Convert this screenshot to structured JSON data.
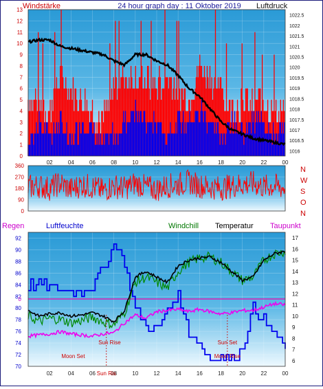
{
  "header": {
    "left_label": "Windstärke",
    "title": "24 hour graph day : 11 Oktober 2019",
    "right_label": "Luftdruck"
  },
  "colors": {
    "background": "#ffffff",
    "plot_bg_top": "#2a9ad6",
    "plot_bg_bottom": "#e6f6ff",
    "axis_red": "#cc0000",
    "wind_red": "#ff0000",
    "wind_blue": "#0000ee",
    "pressure": "#000000",
    "humidity": "#0000ee",
    "windchill": "#008800",
    "temperature": "#000000",
    "dewpoint": "#ee00ee",
    "rain_line": "#ee00aa",
    "frame": "#1a1a7a"
  },
  "chart_data": [
    {
      "type": "line",
      "name_hint": "wind and pressure",
      "x_ticks": [
        "02",
        "04",
        "06",
        "08",
        "10",
        "12",
        "14",
        "16",
        "18",
        "20",
        "22",
        "00"
      ],
      "x_range_hours": [
        0,
        24
      ],
      "y_left": {
        "ticks": [
          "0",
          "1",
          "2",
          "3",
          "4",
          "5",
          "6",
          "7",
          "8",
          "9",
          "10",
          "11",
          "12",
          "13"
        ],
        "range": [
          0,
          13
        ]
      },
      "y_right": {
        "ticks": [
          "1016",
          "1016.5",
          "1017",
          "1017.5",
          "1018",
          "1018.5",
          "1019",
          "1019.5",
          "1020",
          "1020.5",
          "1021",
          "1021.5",
          "1022",
          "1022.5"
        ],
        "range": [
          1015.75,
          1022.75
        ]
      },
      "pressure_series": {
        "x": [
          0,
          1,
          2,
          3,
          4,
          5,
          6,
          7,
          8,
          9,
          10,
          11,
          12,
          13,
          14,
          15,
          16,
          17,
          18,
          19,
          20,
          21,
          22,
          23,
          24
        ],
        "y": [
          1021.2,
          1021.3,
          1021.3,
          1021.0,
          1020.9,
          1020.8,
          1020.7,
          1020.6,
          1020.3,
          1020.1,
          1020.6,
          1020.6,
          1020.3,
          1020.1,
          1019.6,
          1019.0,
          1018.6,
          1018.0,
          1017.4,
          1017.0,
          1016.8,
          1016.6,
          1016.5,
          1016.4,
          1016.3
        ]
      },
      "wind_series": {
        "x": [
          0,
          1,
          2,
          3,
          4,
          5,
          6,
          7,
          8,
          9,
          10,
          11,
          12,
          13,
          14,
          15,
          16,
          17,
          18,
          19,
          20,
          21,
          22,
          23,
          24
        ],
        "gust": [
          5,
          5,
          4,
          7,
          6,
          5,
          4,
          3,
          6,
          7,
          7,
          7,
          6,
          7,
          6,
          5,
          8,
          7,
          6,
          4,
          5,
          5,
          5,
          4,
          4
        ],
        "mean": [
          1,
          3,
          2,
          3,
          1,
          3,
          2,
          1,
          2,
          3,
          4,
          3,
          3,
          2,
          3,
          3,
          4,
          3,
          2,
          3,
          2,
          3,
          3,
          2,
          2
        ]
      }
    },
    {
      "type": "scatter",
      "name_hint": "wind direction",
      "y_ticks": [
        "0",
        "90",
        "180",
        "270",
        "360"
      ],
      "y_range": [
        0,
        360
      ],
      "compass": [
        "N",
        "W",
        "S",
        "O",
        "N"
      ],
      "x": [
        0,
        1,
        2,
        3,
        4,
        5,
        6,
        7,
        8,
        9,
        10,
        11,
        12,
        13,
        14,
        15,
        16,
        17,
        18,
        19,
        20,
        21,
        22,
        23,
        24
      ],
      "y": [
        190,
        200,
        180,
        220,
        170,
        210,
        190,
        160,
        200,
        180,
        220,
        190,
        170,
        200,
        210,
        230,
        200,
        190,
        180,
        200,
        210,
        220,
        190,
        200,
        180
      ]
    },
    {
      "type": "line",
      "name_hint": "temperature and humidity",
      "header_labels": [
        "Regen",
        "Luftfeuchte",
        "Windchill",
        "Temperatur",
        "Taupunkt"
      ],
      "x_ticks": [
        "02",
        "04",
        "06",
        "08",
        "10",
        "12",
        "14",
        "16",
        "18",
        "20",
        "22",
        "00"
      ],
      "y_left": {
        "ticks": [
          "70",
          "72",
          "74",
          "76",
          "78",
          "80",
          "82",
          "84",
          "86",
          "88",
          "90",
          "92"
        ],
        "range": [
          70,
          93
        ]
      },
      "y_right": {
        "ticks": [
          "6",
          "7",
          "8",
          "9",
          "10",
          "11",
          "12",
          "13",
          "14",
          "15",
          "16",
          "17"
        ],
        "range": [
          5.5,
          17.5
        ]
      },
      "rain_label": "0",
      "annotations": [
        "Moon Set",
        "Sun Rise",
        "Sun Set",
        "Moon Rise",
        "Sun Ris"
      ],
      "series": [
        {
          "key": "humidity",
          "x": [
            0,
            1,
            2,
            3,
            4,
            5,
            6,
            7,
            8,
            9,
            10,
            11,
            12,
            13,
            14,
            15,
            16,
            17,
            18,
            19,
            20,
            21,
            22,
            23,
            24
          ],
          "y": [
            84,
            84,
            84,
            83,
            83,
            83,
            84,
            87,
            91,
            88,
            80,
            77,
            76,
            80,
            82,
            76,
            74,
            71,
            72,
            71,
            73,
            80,
            78,
            76,
            73
          ]
        },
        {
          "key": "temperature",
          "x": [
            0,
            1,
            2,
            3,
            4,
            5,
            6,
            7,
            8,
            9,
            10,
            11,
            12,
            13,
            14,
            15,
            16,
            17,
            18,
            19,
            20,
            21,
            22,
            23,
            24
          ],
          "y": [
            10.5,
            10.0,
            10.2,
            10.3,
            10.0,
            10.1,
            10.3,
            10.0,
            9.5,
            10.5,
            13.5,
            14.0,
            13.5,
            13.0,
            14.5,
            15.0,
            15.2,
            15.3,
            14.8,
            14.0,
            13.2,
            13.5,
            15.0,
            15.6,
            15.8
          ]
        },
        {
          "key": "windchill",
          "x": [
            0,
            1,
            2,
            3,
            4,
            5,
            6,
            7,
            8,
            9,
            10,
            11,
            12,
            13,
            14,
            15,
            16,
            17,
            18,
            19,
            20,
            21,
            22,
            23,
            24
          ],
          "y": [
            10.0,
            9.5,
            9.8,
            9.7,
            9.4,
            9.6,
            9.9,
            9.5,
            9.2,
            10.3,
            13.0,
            13.5,
            13.0,
            12.5,
            14.0,
            14.8,
            15.2,
            15.3,
            14.8,
            14.0,
            13.2,
            13.5,
            15.0,
            15.6,
            15.8
          ]
        },
        {
          "key": "dewpoint",
          "x": [
            0,
            1,
            2,
            3,
            4,
            5,
            6,
            7,
            8,
            9,
            10,
            11,
            12,
            13,
            14,
            15,
            16,
            17,
            18,
            19,
            20,
            21,
            22,
            23,
            24
          ],
          "y": [
            8.2,
            8.3,
            8.4,
            8.6,
            8.4,
            8.3,
            8.2,
            8.4,
            8.5,
            9.4,
            10.1,
            9.8,
            10.4,
            10.5,
            10.6,
            10.4,
            10.6,
            10.4,
            10.2,
            10.3,
            10.5,
            10.5,
            10.8,
            11.1,
            11.0
          ]
        }
      ]
    }
  ]
}
